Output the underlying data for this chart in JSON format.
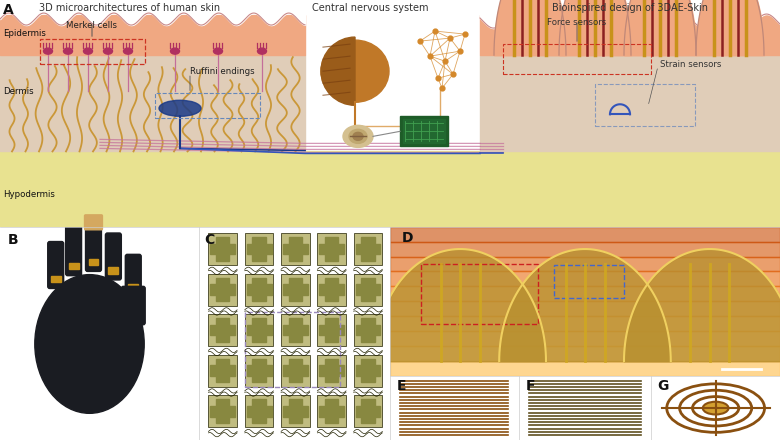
{
  "bg_color": "#ffffff",
  "skin_top_color": "#F0A882",
  "dermis_color": "#E0CDB8",
  "hypodermis_color": "#E8E290",
  "hair_color": "#C8922A",
  "nerve_color": "#C46E9A",
  "blue_nerve_color": "#3355BB",
  "title_A1": "3D microarchitectures of human skin",
  "title_A2": "Central nervous system",
  "title_A3": "Bioinspired design of 3DAE-Skin",
  "label_epidermis": "Epidermis",
  "label_dermis": "Dermis",
  "label_hypodermis": "Hypodermis",
  "label_merkel": "Merkel cells",
  "label_ruffini": "Ruffini endings",
  "label_force": "Force sensors",
  "label_strain": "Strain sensors",
  "label_A": "A",
  "label_B": "B",
  "label_C": "C",
  "label_D": "D",
  "label_E": "E",
  "label_F": "F",
  "label_G": "G",
  "panel_label_fontsize": 10,
  "title_fontsize": 7.0,
  "annotation_fontsize": 6.2,
  "panel_B_bg": "#f0f0ee",
  "panel_C_bg": "#e8e0b0",
  "panel_D_bg": "#887020",
  "panel_E_bg": "#D4922A",
  "panel_F_bg": "#A09050",
  "panel_G_bg": "#C89030",
  "dashed_red": "#CC3322",
  "dashed_blue": "#4466AA",
  "dashed_purple": "#8866AA"
}
